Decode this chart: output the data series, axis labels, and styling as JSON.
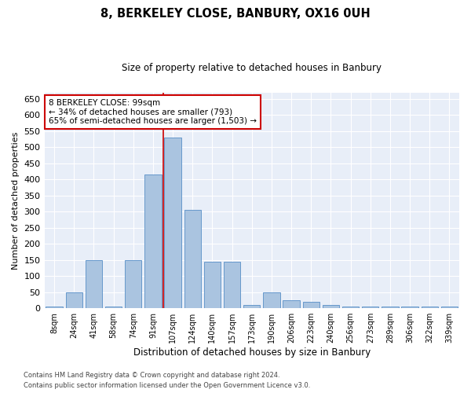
{
  "title": "8, BERKELEY CLOSE, BANBURY, OX16 0UH",
  "subtitle": "Size of property relative to detached houses in Banbury",
  "xlabel": "Distribution of detached houses by size in Banbury",
  "ylabel": "Number of detached properties",
  "categories": [
    "8sqm",
    "24sqm",
    "41sqm",
    "58sqm",
    "74sqm",
    "91sqm",
    "107sqm",
    "124sqm",
    "140sqm",
    "157sqm",
    "173sqm",
    "190sqm",
    "206sqm",
    "223sqm",
    "240sqm",
    "256sqm",
    "273sqm",
    "289sqm",
    "306sqm",
    "322sqm",
    "339sqm"
  ],
  "values": [
    5,
    50,
    150,
    5,
    150,
    415,
    530,
    305,
    145,
    145,
    10,
    50,
    25,
    20,
    10,
    5,
    5,
    5,
    5,
    5,
    5
  ],
  "bar_color": "#aac4e0",
  "bar_edge_color": "#6699cc",
  "property_line_color": "#cc0000",
  "property_line_x": 5.5,
  "annotation_text": "8 BERKELEY CLOSE: 99sqm\n← 34% of detached houses are smaller (793)\n65% of semi-detached houses are larger (1,503) →",
  "annotation_box_facecolor": "#ffffff",
  "annotation_box_edgecolor": "#cc0000",
  "ylim": [
    0,
    670
  ],
  "yticks": [
    0,
    50,
    100,
    150,
    200,
    250,
    300,
    350,
    400,
    450,
    500,
    550,
    600,
    650
  ],
  "bg_color": "#e8eef8",
  "grid_color": "#ffffff",
  "footer_line1": "Contains HM Land Registry data © Crown copyright and database right 2024.",
  "footer_line2": "Contains public sector information licensed under the Open Government Licence v3.0.",
  "figsize": [
    6.0,
    5.0
  ],
  "dpi": 100
}
